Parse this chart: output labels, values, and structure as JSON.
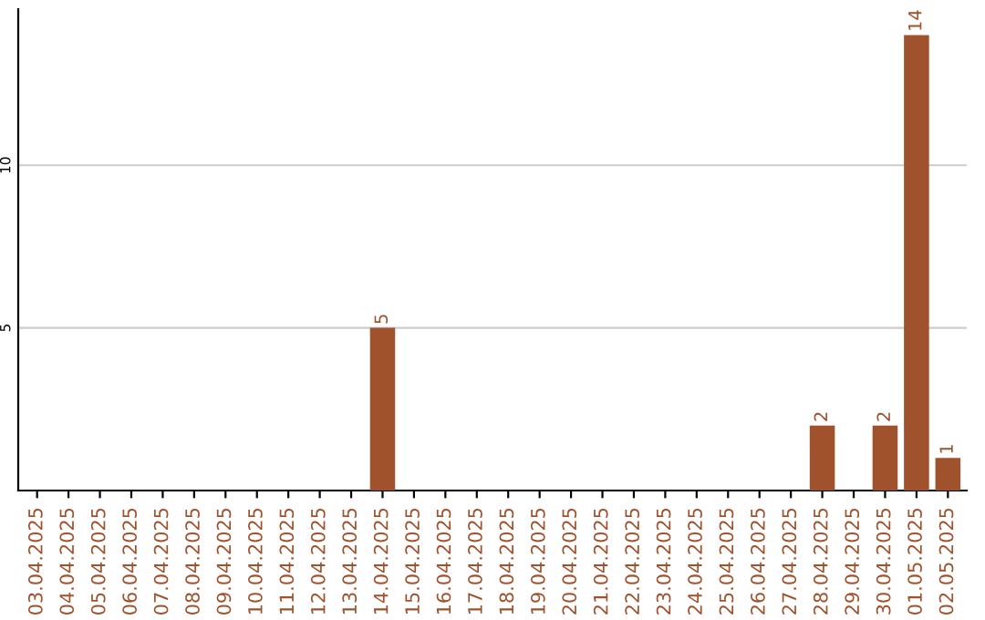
{
  "chart_data": {
    "type": "bar",
    "categories": [
      "03.04.2025",
      "04.04.2025",
      "05.04.2025",
      "06.04.2025",
      "07.04.2025",
      "08.04.2025",
      "09.04.2025",
      "10.04.2025",
      "11.04.2025",
      "12.04.2025",
      "13.04.2025",
      "14.04.2025",
      "15.04.2025",
      "16.04.2025",
      "17.04.2025",
      "18.04.2025",
      "19.04.2025",
      "20.04.2025",
      "21.04.2025",
      "22.04.2025",
      "23.04.2025",
      "24.04.2025",
      "25.04.2025",
      "26.04.2025",
      "27.04.2025",
      "28.04.2025",
      "29.04.2025",
      "30.04.2025",
      "01.05.2025",
      "02.05.2025"
    ],
    "values": [
      0,
      0,
      0,
      0,
      0,
      0,
      0,
      0,
      0,
      0,
      0,
      5,
      0,
      0,
      0,
      0,
      0,
      0,
      0,
      0,
      0,
      0,
      0,
      0,
      0,
      2,
      0,
      2,
      14,
      1
    ],
    "value_labels": [
      null,
      null,
      null,
      null,
      null,
      null,
      null,
      null,
      null,
      null,
      null,
      "5",
      null,
      null,
      null,
      null,
      null,
      null,
      null,
      null,
      null,
      null,
      null,
      null,
      null,
      "2",
      null,
      "2",
      "14",
      "1"
    ],
    "color": "#a0522d",
    "ylim": [
      0,
      14.8
    ],
    "yticks": [
      5,
      10
    ],
    "grid": "y"
  }
}
